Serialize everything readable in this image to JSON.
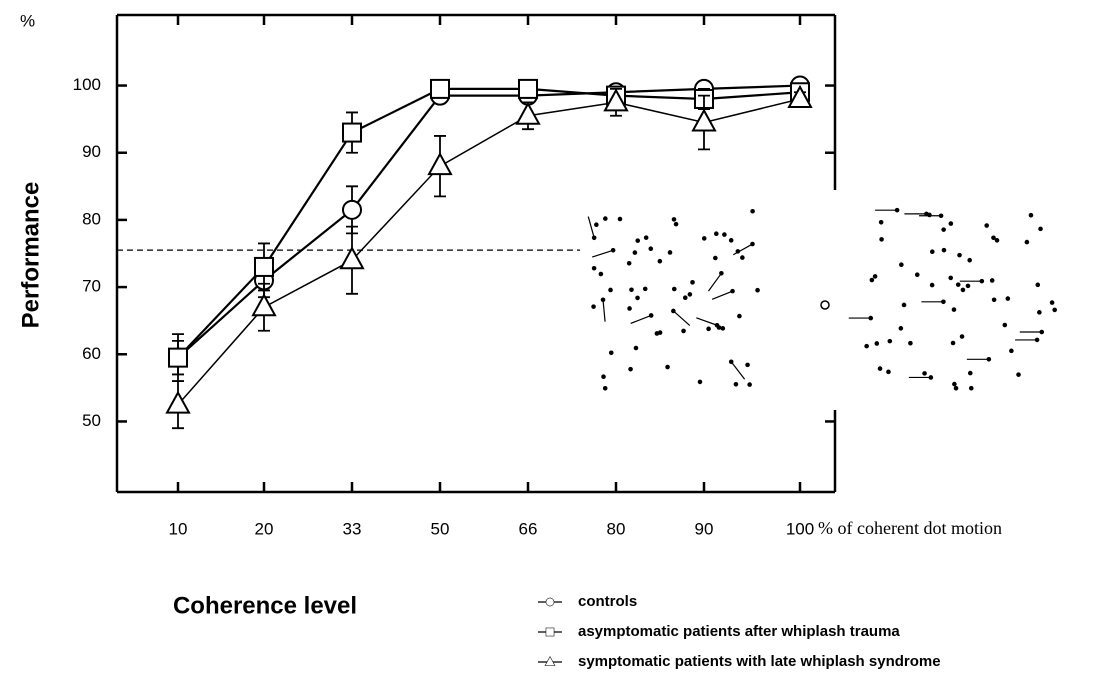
{
  "chart_data": {
    "type": "line",
    "x_label": "Coherence level",
    "y_label": "Performance",
    "y_unit": "%",
    "x_note": "% of coherent dot motion",
    "categories": [
      "10",
      "20",
      "33",
      "50",
      "66",
      "80",
      "90",
      "100"
    ],
    "ylim": [
      39.5,
      110.5
    ],
    "yticks": [
      50,
      60,
      70,
      80,
      90,
      100
    ],
    "threshold": 75.5,
    "series": [
      {
        "name": "controls",
        "marker": "circle",
        "color": "#000000",
        "values": [
          59.5,
          71,
          81.5,
          98.5,
          98.5,
          99,
          99.5,
          100
        ],
        "errors": [
          2.5,
          2.5,
          3.5,
          1,
          1,
          1,
          1,
          0.5
        ]
      },
      {
        "name": "asymptomatic patients after whiplash trauma",
        "marker": "square",
        "color": "#000000",
        "values": [
          59.5,
          73,
          93,
          99.5,
          99.5,
          98.5,
          98,
          99
        ],
        "errors": [
          3.5,
          3.5,
          3,
          0.5,
          0.5,
          1,
          1.5,
          1
        ]
      },
      {
        "name": "symptomatic patients with late whiplash syndrome",
        "marker": "triangle",
        "color": "#000000",
        "values": [
          52.5,
          67,
          74,
          88,
          95.5,
          97.5,
          94.5,
          98
        ],
        "errors": [
          3.5,
          3.5,
          5,
          4.5,
          2,
          2,
          4,
          1
        ]
      }
    ]
  }
}
